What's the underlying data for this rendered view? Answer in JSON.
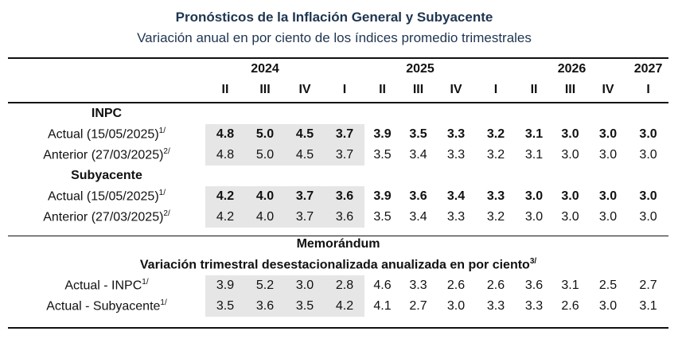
{
  "title": "Pronósticos de la Inflación General y Subyacente",
  "subtitle": "Variación anual en por ciento de los índices promedio trimestrales",
  "years": [
    "2024",
    "2025",
    "2026",
    "2027"
  ],
  "quarters": [
    "II",
    "III",
    "IV",
    "I",
    "II",
    "III",
    "IV",
    "I",
    "II",
    "III",
    "IV",
    "I"
  ],
  "sections": {
    "inpc": "INPC",
    "subyacente": "Subyacente",
    "memo": "Memorándum",
    "memo_sub": "Variación trimestral desestacionalizada anualizada en por ciento",
    "memo_sub_note": "3/"
  },
  "rows": {
    "inpc_actual": {
      "label": "Actual (15/05/2025)",
      "note": "1/",
      "values": [
        "4.8",
        "5.0",
        "4.5",
        "3.7",
        "3.9",
        "3.5",
        "3.3",
        "3.2",
        "3.1",
        "3.0",
        "3.0",
        "3.0"
      ]
    },
    "inpc_anterior": {
      "label": "Anterior (27/03/2025)",
      "note": "2/",
      "values": [
        "4.8",
        "5.0",
        "4.5",
        "3.7",
        "3.5",
        "3.4",
        "3.3",
        "3.2",
        "3.1",
        "3.0",
        "3.0",
        "3.0"
      ]
    },
    "sub_actual": {
      "label": "Actual (15/05/2025)",
      "note": "1/",
      "values": [
        "4.2",
        "4.0",
        "3.7",
        "3.6",
        "3.9",
        "3.6",
        "3.4",
        "3.3",
        "3.0",
        "3.0",
        "3.0",
        "3.0"
      ]
    },
    "sub_anterior": {
      "label": "Anterior (27/03/2025)",
      "note": "2/",
      "values": [
        "4.2",
        "4.0",
        "3.7",
        "3.6",
        "3.5",
        "3.4",
        "3.3",
        "3.2",
        "3.0",
        "3.0",
        "3.0",
        "3.0"
      ]
    },
    "memo_inpc": {
      "label": "Actual - INPC",
      "note": "1/",
      "values": [
        "3.9",
        "5.2",
        "3.0",
        "2.8",
        "4.6",
        "3.3",
        "2.6",
        "2.6",
        "3.6",
        "3.1",
        "2.5",
        "2.7"
      ]
    },
    "memo_sub": {
      "label": "Actual - Subyacente",
      "note": "1/",
      "values": [
        "3.5",
        "3.6",
        "3.5",
        "4.2",
        "4.1",
        "2.7",
        "3.0",
        "3.3",
        "3.3",
        "2.6",
        "3.0",
        "3.1"
      ]
    }
  },
  "colors": {
    "title": "#1f3550",
    "shade": "#e6e6e6"
  }
}
